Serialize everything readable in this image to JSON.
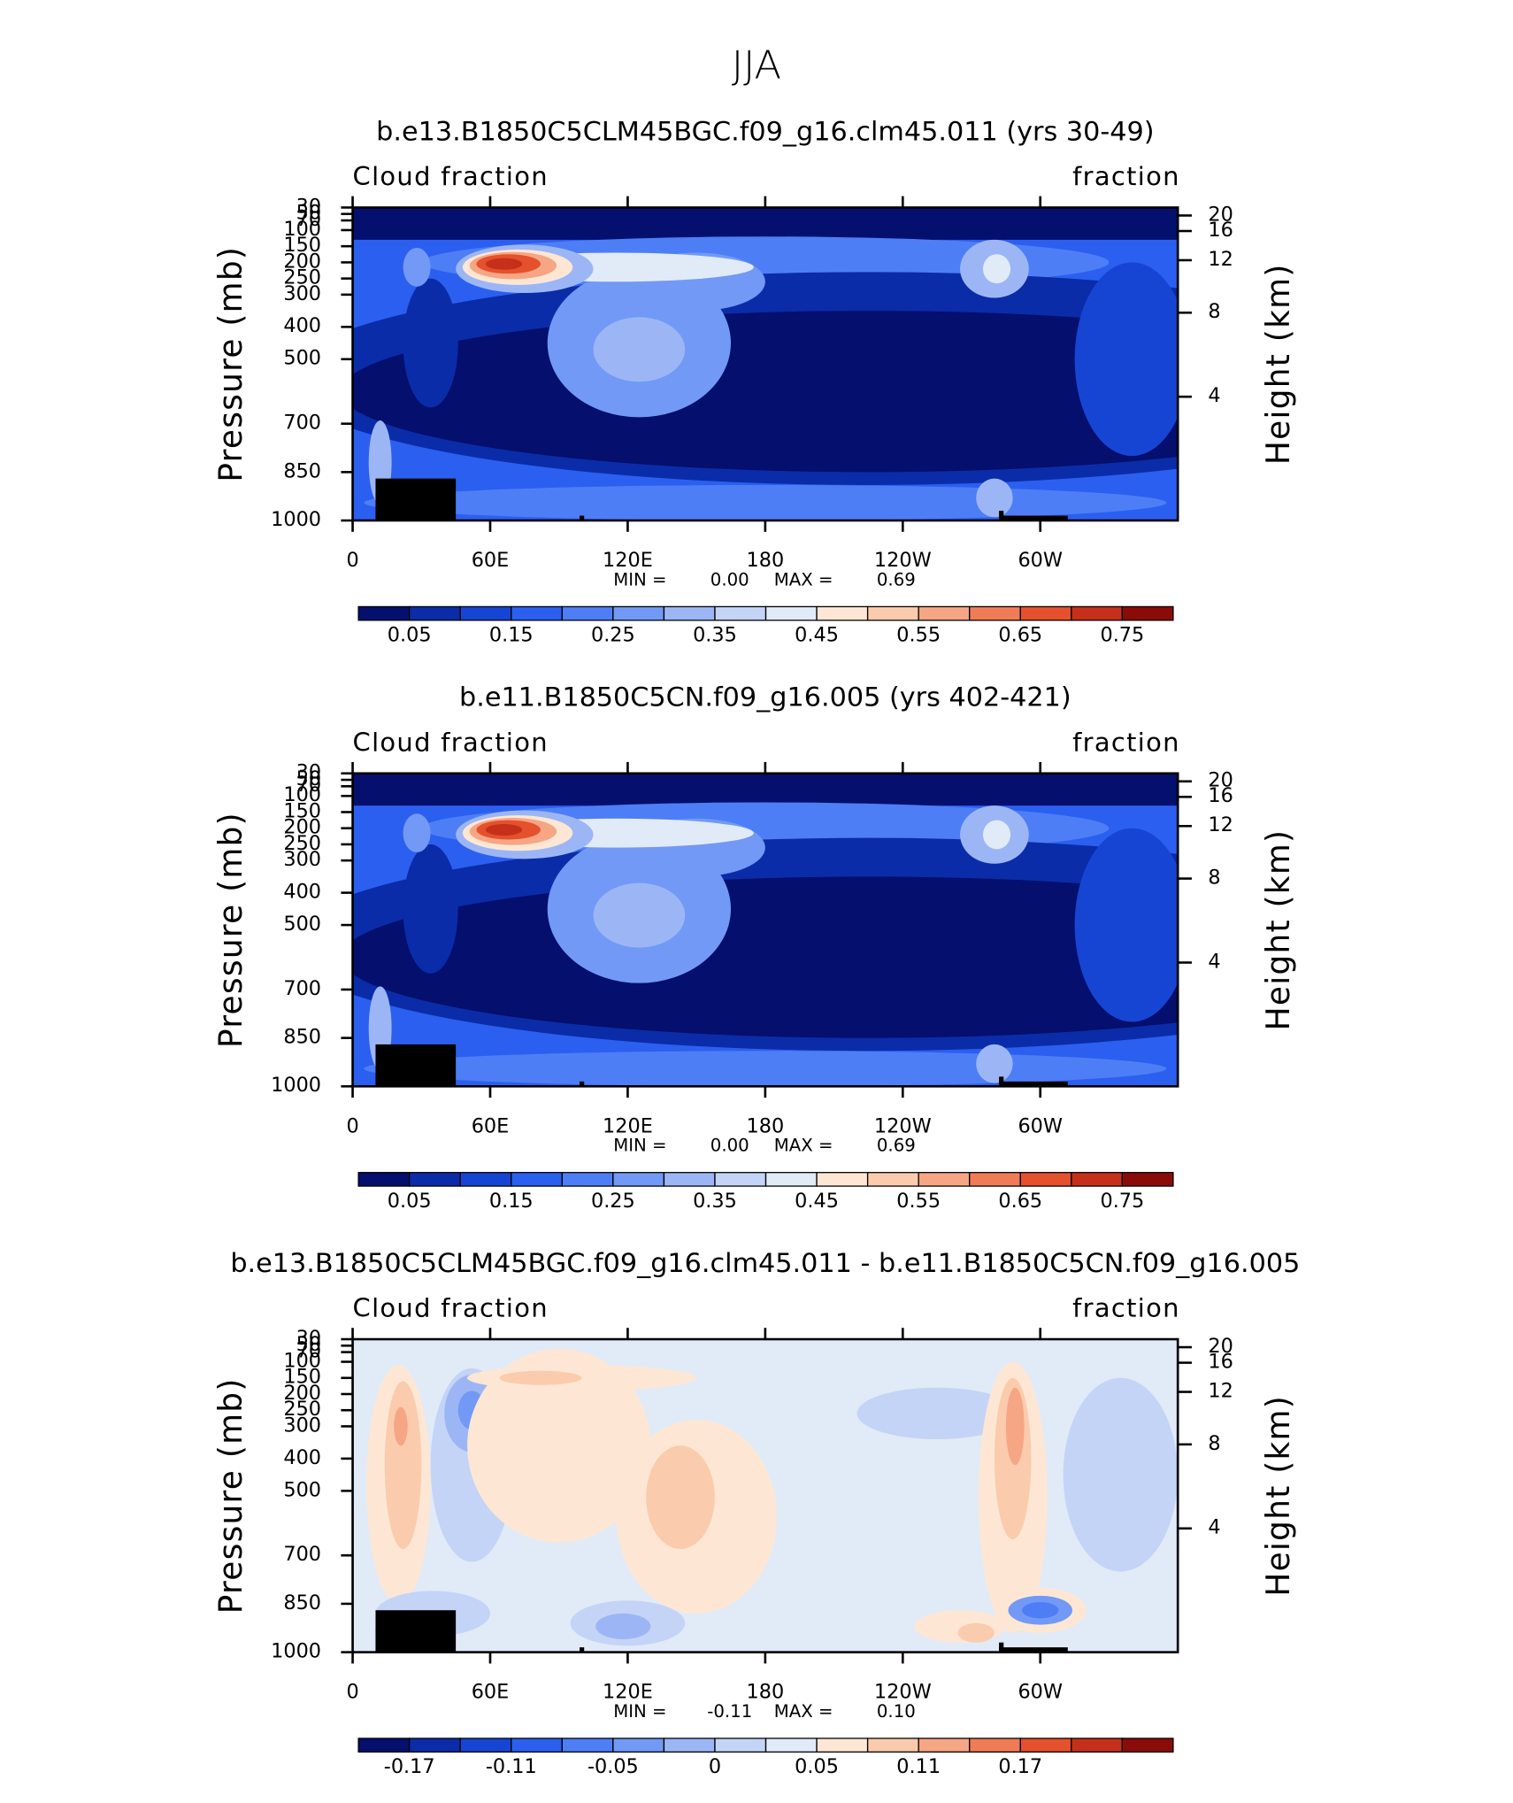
{
  "title": "JJA",
  "chart_data": [
    {
      "type": "contour",
      "title": "b.e13.B1850C5CLM45BGC.f09_g16.clm45.011 (yrs 30-49)",
      "left_string": "Cloud fraction",
      "right_string": "fraction",
      "ylabel": "Pressure (mb)",
      "y2label": "Height (km)",
      "xlim": [
        0,
        360
      ],
      "xticks": [
        0,
        {
          "value": 60,
          "label": "60E"
        },
        {
          "value": 120,
          "label": "120E"
        },
        180,
        {
          "value": 240,
          "label": "120W"
        },
        {
          "value": 300,
          "label": "60W"
        }
      ],
      "ylim": [
        1000,
        30
      ],
      "yticks": [
        30,
        50,
        70,
        100,
        150,
        200,
        250,
        300,
        400,
        500,
        700,
        850,
        1000
      ],
      "y2ticks": [
        4,
        8,
        12,
        16,
        20
      ],
      "min_text": "MIN =",
      "min": {
        "value": 0,
        "label": "0.00"
      },
      "max_text": "MAX =",
      "max": 0.69,
      "colorbar": {
        "colors": [
          "#040f6e",
          "#0b2ca8",
          "#1745d3",
          "#2b5ff0",
          "#4d7ef5",
          "#7299f5",
          "#9cb6f5",
          "#c4d4f6",
          "#e1eaf7",
          "#fde7d4",
          "#fbcbae",
          "#f6a684",
          "#f07c56",
          "#e5512d",
          "#c6301a",
          "#8b0b09"
        ],
        "ticks": [
          0.05,
          0.15,
          0.25,
          0.35,
          0.45,
          0.55,
          0.65,
          0.75
        ]
      }
    },
    {
      "type": "contour",
      "title": "b.e11.B1850C5CN.f09_g16.005 (yrs 402-421)",
      "left_string": "Cloud fraction",
      "right_string": "fraction",
      "ylabel": "Pressure (mb)",
      "y2label": "Height (km)",
      "xlim": [
        0,
        360
      ],
      "xticks": [
        0,
        {
          "value": 60,
          "label": "60E"
        },
        {
          "value": 120,
          "label": "120E"
        },
        180,
        {
          "value": 240,
          "label": "120W"
        },
        {
          "value": 300,
          "label": "60W"
        }
      ],
      "ylim": [
        1000,
        30
      ],
      "yticks": [
        30,
        50,
        70,
        100,
        150,
        200,
        250,
        300,
        400,
        500,
        700,
        850,
        1000
      ],
      "y2ticks": [
        4,
        8,
        12,
        16,
        20
      ],
      "min_text": "MIN =",
      "min": {
        "value": 0,
        "label": "0.00"
      },
      "max_text": "MAX =",
      "max": 0.69,
      "colorbar": {
        "colors": [
          "#040f6e",
          "#0b2ca8",
          "#1745d3",
          "#2b5ff0",
          "#4d7ef5",
          "#7299f5",
          "#9cb6f5",
          "#c4d4f6",
          "#e1eaf7",
          "#fde7d4",
          "#fbcbae",
          "#f6a684",
          "#f07c56",
          "#e5512d",
          "#c6301a",
          "#8b0b09"
        ],
        "ticks": [
          0.05,
          0.15,
          0.25,
          0.35,
          0.45,
          0.55,
          0.65,
          0.75
        ]
      }
    },
    {
      "type": "contour-diff",
      "title": "b.e13.B1850C5CLM45BGC.f09_g16.clm45.011 - b.e11.B1850C5CN.f09_g16.005",
      "left_string": "Cloud fraction",
      "right_string": "fraction",
      "ylabel": "Pressure (mb)",
      "y2label": "Height (km)",
      "xlim": [
        0,
        360
      ],
      "xticks": [
        0,
        {
          "value": 60,
          "label": "60E"
        },
        {
          "value": 120,
          "label": "120E"
        },
        180,
        {
          "value": 240,
          "label": "120W"
        },
        {
          "value": 300,
          "label": "60W"
        }
      ],
      "ylim": [
        1000,
        30
      ],
      "yticks": [
        30,
        50,
        70,
        100,
        150,
        200,
        250,
        300,
        400,
        500,
        700,
        850,
        1000
      ],
      "y2ticks": [
        4,
        8,
        12,
        16,
        20
      ],
      "min_text": "MIN =",
      "min": -0.11,
      "max_text": "MAX =",
      "max": {
        "value": 0.1,
        "label": "0.10"
      },
      "colorbar": {
        "colors": [
          "#040f6e",
          "#0b2ca8",
          "#1745d3",
          "#2b5ff0",
          "#4d7ef5",
          "#7299f5",
          "#9cb6f5",
          "#c4d4f6",
          "#e1eaf7",
          "#fde7d4",
          "#fbcbae",
          "#f6a684",
          "#f07c56",
          "#e5512d",
          "#c6301a",
          "#8b0b09"
        ],
        "ticks": [
          -0.17,
          -0.11,
          -0.05,
          0,
          0.05,
          0.11,
          0.17
        ]
      }
    }
  ]
}
